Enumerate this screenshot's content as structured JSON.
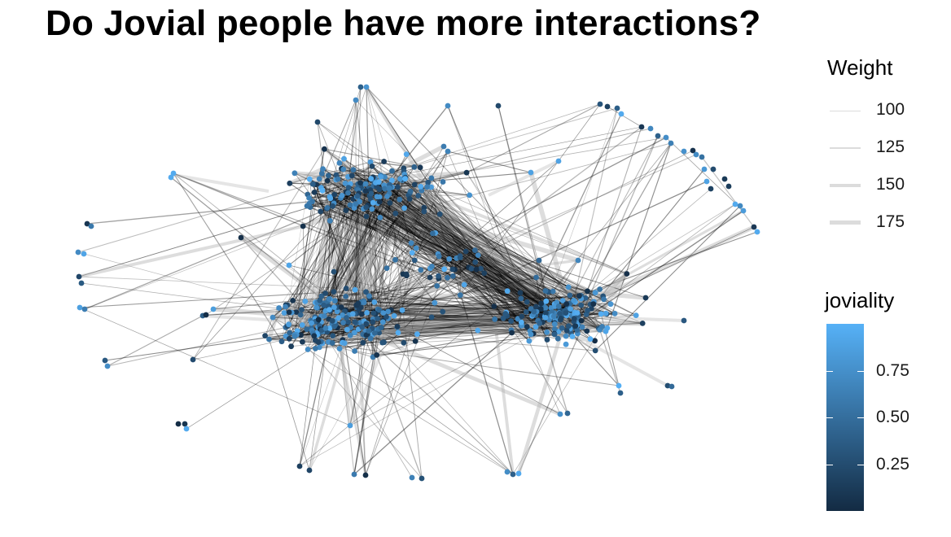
{
  "title": "Do Jovial people have more interactions?",
  "legend_weight": {
    "title": "Weight",
    "entries": [
      {
        "label": "100",
        "value": 100
      },
      {
        "label": "125",
        "value": 125
      },
      {
        "label": "150",
        "value": 150
      },
      {
        "label": "175",
        "value": 175
      }
    ]
  },
  "legend_joviality": {
    "title": "joviality",
    "low_color": "#132B43",
    "high_color": "#56B1F7",
    "range": [
      0,
      1
    ],
    "ticks": [
      {
        "label": "0.75",
        "value": 0.75
      },
      {
        "label": "0.50",
        "value": 0.5
      },
      {
        "label": "0.25",
        "value": 0.25
      }
    ]
  },
  "colors": {
    "edge": "#000000",
    "weight_legend_line": "#dcdcdc",
    "background": "#ffffff"
  }
}
